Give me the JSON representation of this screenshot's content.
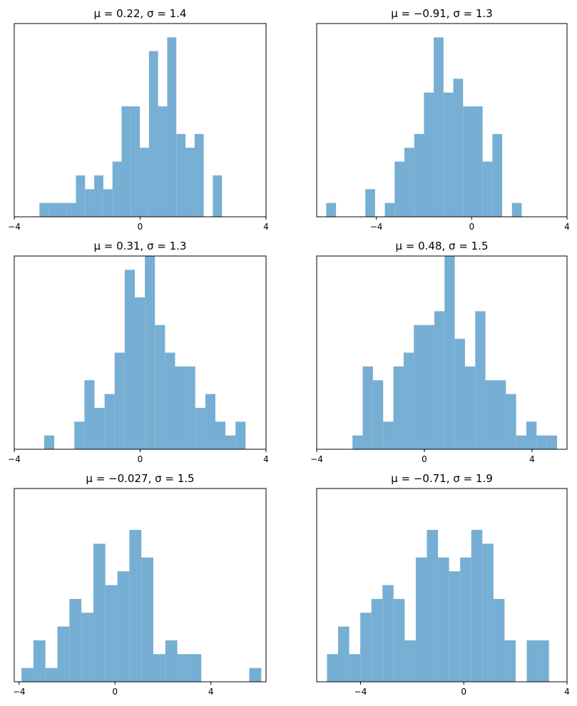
{
  "figure": {
    "bar_color": "#77aed3"
  },
  "chart_data": [
    {
      "type": "bar",
      "title": "μ = 0.22,    σ = 1.4",
      "xlim": [
        -4,
        4
      ],
      "ylim": [
        0,
        14
      ],
      "xticks": [
        -4,
        0,
        4
      ],
      "xtick_labels": [
        "−4",
        "0",
        "4"
      ],
      "yticks_visible": false,
      "bin_width": 0.29,
      "bins": [
        {
          "x": -3.2,
          "count": 1
        },
        {
          "x": -2.91,
          "count": 1
        },
        {
          "x": -2.62,
          "count": 1
        },
        {
          "x": -2.33,
          "count": 1
        },
        {
          "x": -2.04,
          "count": 3
        },
        {
          "x": -1.75,
          "count": 2
        },
        {
          "x": -1.46,
          "count": 3
        },
        {
          "x": -1.17,
          "count": 2
        },
        {
          "x": -0.88,
          "count": 4
        },
        {
          "x": -0.59,
          "count": 8
        },
        {
          "x": -0.3,
          "count": 8
        },
        {
          "x": -0.01,
          "count": 5
        },
        {
          "x": 0.28,
          "count": 12
        },
        {
          "x": 0.57,
          "count": 8
        },
        {
          "x": 0.86,
          "count": 13
        },
        {
          "x": 1.15,
          "count": 6
        },
        {
          "x": 1.44,
          "count": 5
        },
        {
          "x": 1.73,
          "count": 6
        },
        {
          "x": 2.31,
          "count": 3
        }
      ]
    },
    {
      "type": "bar",
      "title": "μ = −0.91,    σ = 1.3",
      "xlim": [
        -6.5,
        4
      ],
      "ylim": [
        0,
        14
      ],
      "xticks": [
        -4,
        0,
        4
      ],
      "xtick_labels": [
        "−4",
        "0",
        "4"
      ],
      "yticks_visible": false,
      "bin_width": 0.41,
      "bins": [
        {
          "x": -6.1,
          "count": 1
        },
        {
          "x": -4.46,
          "count": 2
        },
        {
          "x": -3.64,
          "count": 1
        },
        {
          "x": -3.23,
          "count": 4
        },
        {
          "x": -2.82,
          "count": 5
        },
        {
          "x": -2.41,
          "count": 6
        },
        {
          "x": -2.0,
          "count": 9
        },
        {
          "x": -1.59,
          "count": 13
        },
        {
          "x": -1.18,
          "count": 9
        },
        {
          "x": -0.77,
          "count": 10
        },
        {
          "x": -0.36,
          "count": 8
        },
        {
          "x": 0.05,
          "count": 8
        },
        {
          "x": 0.46,
          "count": 4
        },
        {
          "x": 0.87,
          "count": 6
        },
        {
          "x": 1.69,
          "count": 1
        }
      ]
    },
    {
      "type": "bar",
      "title": "μ = 0.31,    σ = 1.3",
      "xlim": [
        -4,
        4
      ],
      "ylim": [
        0,
        14
      ],
      "xticks": [
        -4,
        0,
        4
      ],
      "xtick_labels": [
        "−4",
        "0",
        "4"
      ],
      "yticks_visible": false,
      "bin_width": 0.32,
      "bins": [
        {
          "x": -3.05,
          "count": 1
        },
        {
          "x": -2.09,
          "count": 2
        },
        {
          "x": -1.77,
          "count": 5
        },
        {
          "x": -1.45,
          "count": 3
        },
        {
          "x": -1.13,
          "count": 4
        },
        {
          "x": -0.81,
          "count": 7
        },
        {
          "x": -0.49,
          "count": 13
        },
        {
          "x": -0.17,
          "count": 11
        },
        {
          "x": 0.15,
          "count": 14
        },
        {
          "x": 0.47,
          "count": 9
        },
        {
          "x": 0.79,
          "count": 7
        },
        {
          "x": 1.11,
          "count": 6
        },
        {
          "x": 1.43,
          "count": 6
        },
        {
          "x": 1.75,
          "count": 3
        },
        {
          "x": 2.07,
          "count": 4
        },
        {
          "x": 2.39,
          "count": 2
        },
        {
          "x": 2.71,
          "count": 1
        },
        {
          "x": 3.03,
          "count": 2
        }
      ]
    },
    {
      "type": "bar",
      "title": "μ = 0.48,    σ = 1.5",
      "xlim": [
        -4,
        5.3
      ],
      "ylim": [
        0,
        14
      ],
      "xticks": [
        -4,
        0,
        4
      ],
      "xtick_labels": [
        "−4",
        "0",
        "4"
      ],
      "yticks_visible": false,
      "bin_width": 0.38,
      "bins": [
        {
          "x": -2.67,
          "count": 1
        },
        {
          "x": -2.29,
          "count": 6
        },
        {
          "x": -1.91,
          "count": 5
        },
        {
          "x": -1.53,
          "count": 2
        },
        {
          "x": -1.15,
          "count": 6
        },
        {
          "x": -0.77,
          "count": 7
        },
        {
          "x": -0.39,
          "count": 9
        },
        {
          "x": -0.01,
          "count": 9
        },
        {
          "x": 0.37,
          "count": 10
        },
        {
          "x": 0.75,
          "count": 14
        },
        {
          "x": 1.13,
          "count": 8
        },
        {
          "x": 1.51,
          "count": 6
        },
        {
          "x": 1.89,
          "count": 10
        },
        {
          "x": 2.27,
          "count": 5
        },
        {
          "x": 2.65,
          "count": 5
        },
        {
          "x": 3.03,
          "count": 4
        },
        {
          "x": 3.41,
          "count": 1
        },
        {
          "x": 3.79,
          "count": 2
        },
        {
          "x": 4.17,
          "count": 1
        },
        {
          "x": 4.55,
          "count": 1
        }
      ]
    },
    {
      "type": "bar",
      "title": "μ = −0.027,    σ = 1.5",
      "xlim": [
        -4.2,
        6.3
      ],
      "ylim": [
        0,
        14
      ],
      "xticks": [
        -4,
        0,
        4
      ],
      "xtick_labels": [
        "−4",
        "0",
        "4"
      ],
      "yticks_visible": false,
      "bin_width": 0.5,
      "bins": [
        {
          "x": -3.9,
          "count": 1
        },
        {
          "x": -3.4,
          "count": 3
        },
        {
          "x": -2.9,
          "count": 1
        },
        {
          "x": -2.4,
          "count": 4
        },
        {
          "x": -1.9,
          "count": 6
        },
        {
          "x": -1.4,
          "count": 5
        },
        {
          "x": -0.9,
          "count": 10
        },
        {
          "x": -0.4,
          "count": 7
        },
        {
          "x": 0.1,
          "count": 8
        },
        {
          "x": 0.6,
          "count": 11
        },
        {
          "x": 1.1,
          "count": 9
        },
        {
          "x": 1.6,
          "count": 2
        },
        {
          "x": 2.1,
          "count": 3
        },
        {
          "x": 2.6,
          "count": 2
        },
        {
          "x": 3.1,
          "count": 2
        },
        {
          "x": 5.6,
          "count": 1
        }
      ]
    },
    {
      "type": "bar",
      "title": "μ = −0.71,    σ = 1.9",
      "xlim": [
        -5.7,
        4
      ],
      "ylim": [
        0,
        14
      ],
      "xticks": [
        -4,
        0,
        4
      ],
      "xtick_labels": [
        "−4",
        "0",
        "4"
      ],
      "yticks_visible": false,
      "bin_width": 0.43,
      "bins": [
        {
          "x": -5.3,
          "count": 2
        },
        {
          "x": -4.87,
          "count": 4
        },
        {
          "x": -4.44,
          "count": 2
        },
        {
          "x": -4.01,
          "count": 5
        },
        {
          "x": -3.58,
          "count": 6
        },
        {
          "x": -3.15,
          "count": 7
        },
        {
          "x": -2.72,
          "count": 6
        },
        {
          "x": -2.29,
          "count": 3
        },
        {
          "x": -1.86,
          "count": 9
        },
        {
          "x": -1.43,
          "count": 11
        },
        {
          "x": -1.0,
          "count": 9
        },
        {
          "x": -0.57,
          "count": 8
        },
        {
          "x": -0.14,
          "count": 9
        },
        {
          "x": 0.29,
          "count": 11
        },
        {
          "x": 0.72,
          "count": 10
        },
        {
          "x": 1.15,
          "count": 6
        },
        {
          "x": 1.58,
          "count": 3
        },
        {
          "x": 2.44,
          "count": 3
        },
        {
          "x": 2.87,
          "count": 3
        }
      ]
    }
  ]
}
